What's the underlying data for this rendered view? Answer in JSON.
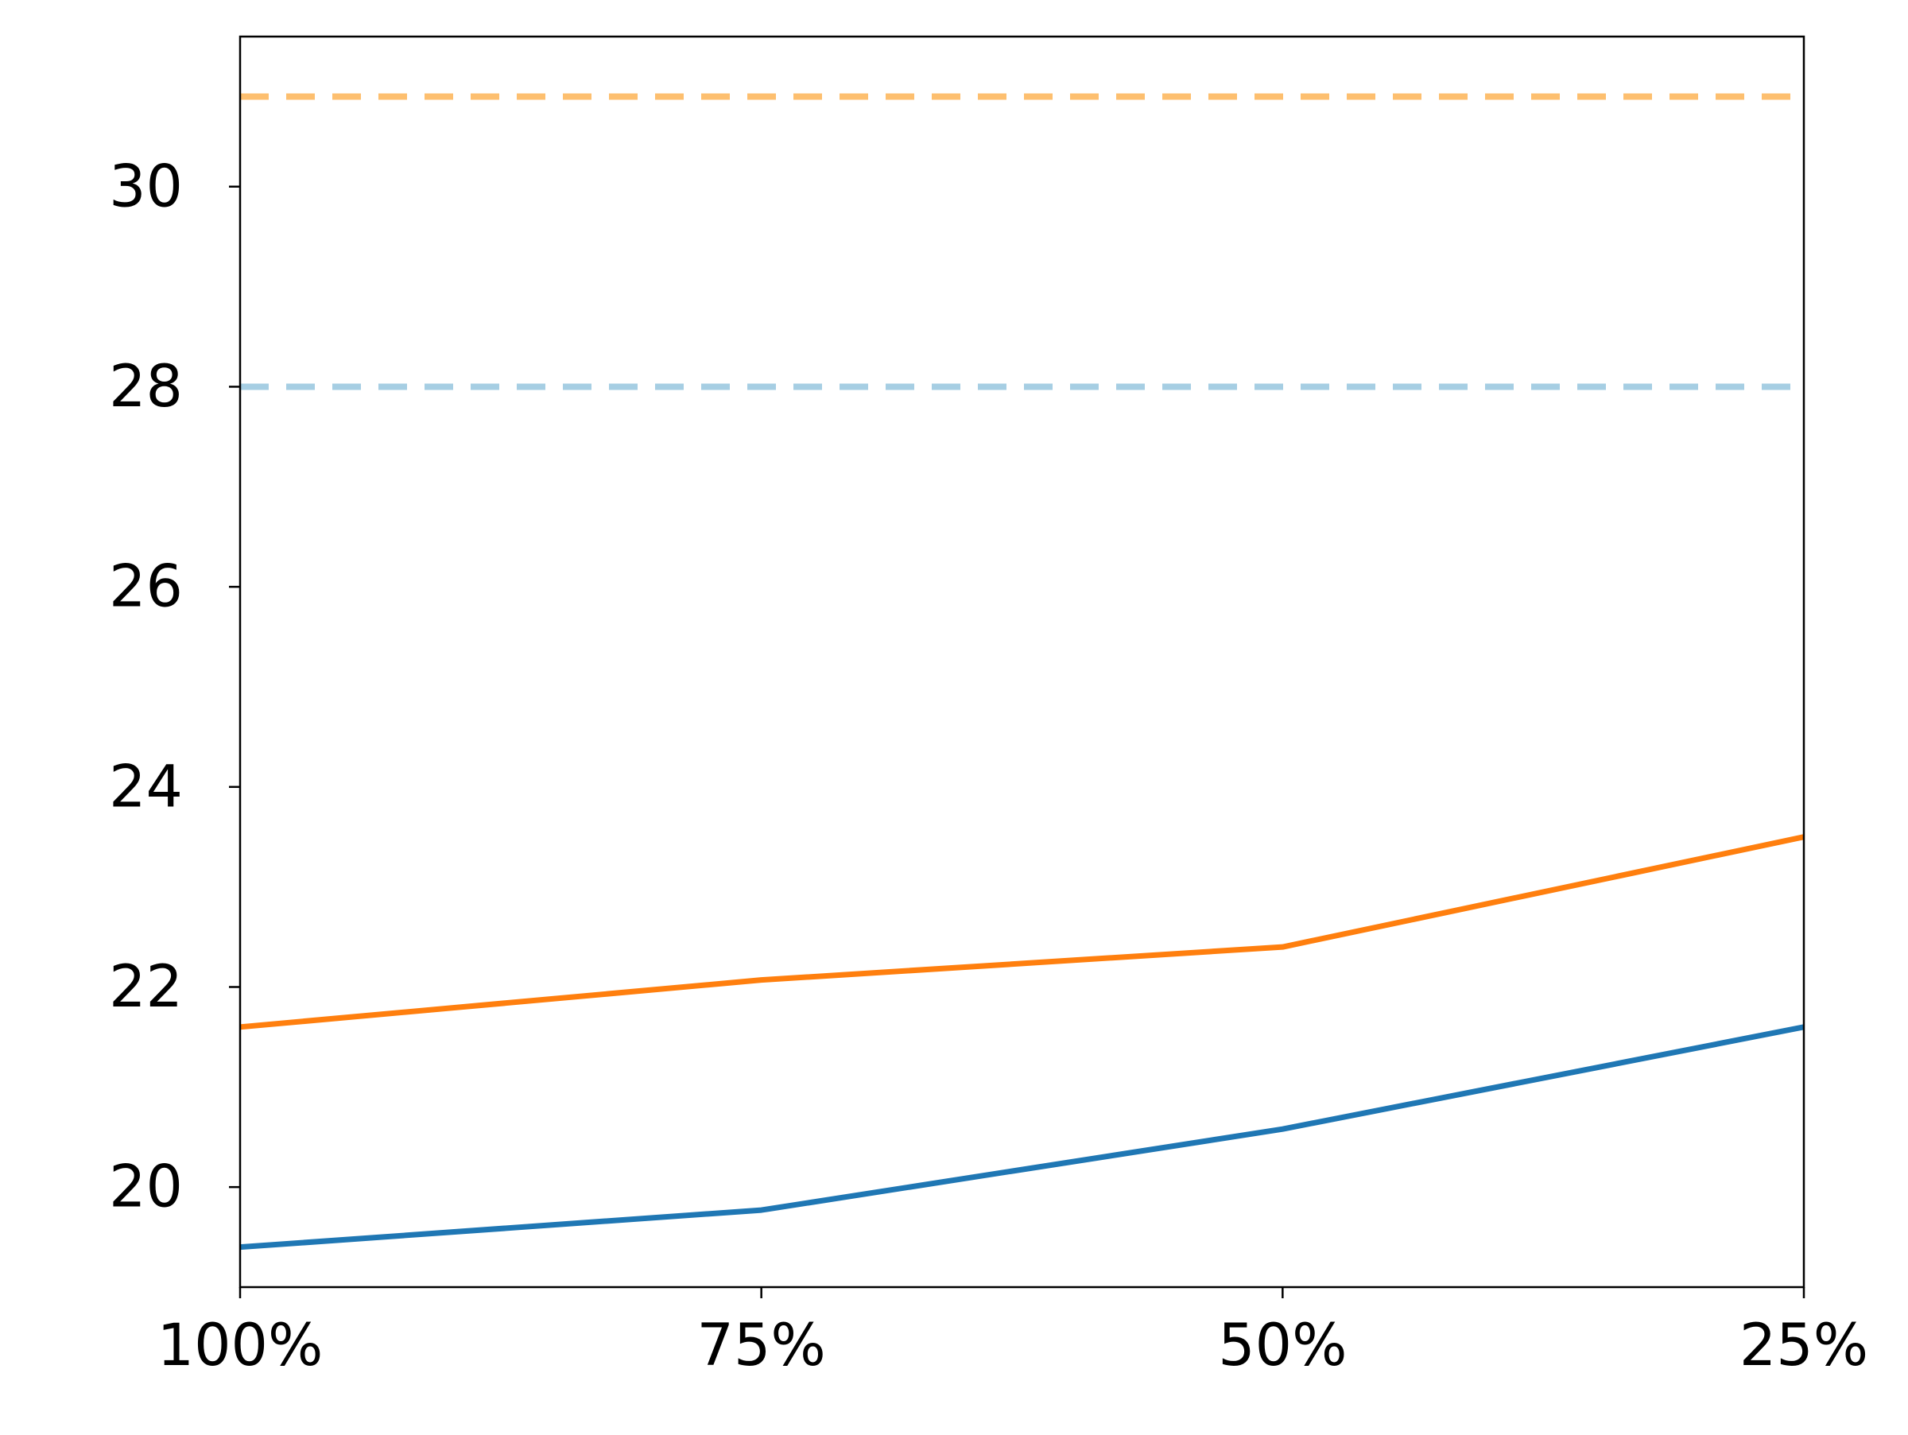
{
  "chart_data": {
    "type": "line",
    "title": "",
    "xlabel": "",
    "ylabel": "",
    "categories": [
      "100%",
      "75%",
      "50%",
      "25%"
    ],
    "ylim": [
      19.0,
      31.5
    ],
    "yticks": [
      20,
      22,
      24,
      26,
      28,
      30
    ],
    "grid": false,
    "legend": "none",
    "series": [
      {
        "color": "#ff7f0e",
        "values": [
          21.6,
          22.07,
          22.4,
          23.5
        ]
      },
      {
        "color": "#1f77b4",
        "values": [
          19.4,
          19.77,
          20.58,
          21.6
        ]
      }
    ],
    "reference_lines": [
      {
        "color": "#fdbf6f",
        "style": "dashed",
        "y": 30.9
      },
      {
        "color": "#a6cee3",
        "style": "dashed",
        "y": 28.0
      }
    ]
  }
}
